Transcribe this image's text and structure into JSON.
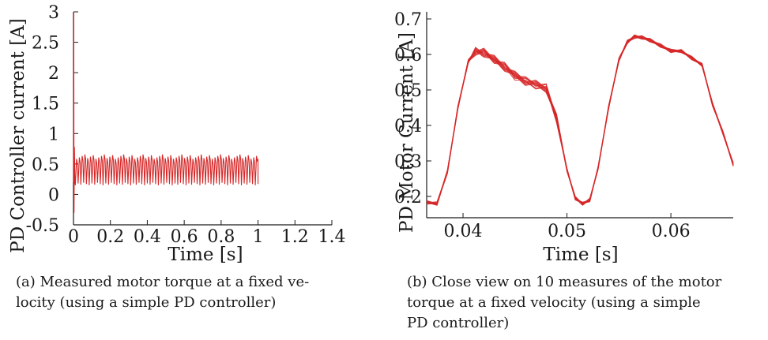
{
  "chart_data": [
    {
      "type": "line",
      "title": "",
      "xlabel": "Time [s]",
      "ylabel": "PD Controller current [A]",
      "xlim": [
        0,
        1.4
      ],
      "ylim": [
        -0.5,
        3
      ],
      "xticks": [
        0,
        0.2,
        0.4,
        0.6,
        0.8,
        1,
        1.2,
        1.4
      ],
      "xtick_labels": [
        "0",
        "0.2",
        "0.4",
        "0.6",
        "0.8",
        "1",
        "1.2",
        "1.4"
      ],
      "yticks": [
        -0.5,
        0,
        0.5,
        1,
        1.5,
        2,
        2.5,
        3
      ],
      "ytick_labels": [
        "-0.5",
        "0",
        "0.5",
        "1",
        "1.5",
        "2",
        "2.5",
        "3"
      ],
      "grid": false,
      "series": [
        {
          "color": "#d62728",
          "description_values": {
            "initial_spike_t": 0,
            "initial_spike_peak": 3.0,
            "initial_dip": -0.3,
            "oscillation_period_s": 0.015,
            "oscillation_min": 0.17,
            "oscillation_max": 0.62,
            "end_time": 1.0
          }
        }
      ],
      "caption": "(a) Measured motor torque at a fixed velocity (using a simple PD controller)"
    },
    {
      "type": "line",
      "title": "",
      "xlabel": "Time [s]",
      "ylabel": "PD Motor Current [A]",
      "xlim": [
        0.0365,
        0.066
      ],
      "ylim": [
        0.14,
        0.72
      ],
      "xticks": [
        0.04,
        0.05,
        0.06
      ],
      "xtick_labels": [
        "0.04",
        "0.05",
        "0.06"
      ],
      "yticks": [
        0.2,
        0.3,
        0.4,
        0.5,
        0.6,
        0.7
      ],
      "ytick_labels": [
        "0.2",
        "0.3",
        "0.4",
        "0.5",
        "0.6",
        "0.7"
      ],
      "grid": false,
      "series_count": 10,
      "color": "#d62728",
      "x": [
        0.0365,
        0.0375,
        0.0385,
        0.0395,
        0.0405,
        0.0412,
        0.042,
        0.043,
        0.044,
        0.045,
        0.046,
        0.047,
        0.048,
        0.049,
        0.05,
        0.0508,
        0.0515,
        0.0522,
        0.053,
        0.054,
        0.055,
        0.0558,
        0.0565,
        0.0572,
        0.058,
        0.059,
        0.06,
        0.061,
        0.062,
        0.063,
        0.064,
        0.065,
        0.066
      ],
      "y": [
        0.183,
        0.18,
        0.27,
        0.45,
        0.58,
        0.61,
        0.605,
        0.585,
        0.565,
        0.54,
        0.525,
        0.515,
        0.505,
        0.42,
        0.275,
        0.195,
        0.18,
        0.19,
        0.28,
        0.45,
        0.585,
        0.635,
        0.65,
        0.648,
        0.64,
        0.625,
        0.61,
        0.61,
        0.59,
        0.57,
        0.46,
        0.38,
        0.29
      ],
      "caption": "(b) Close view on 10 measures of the motor torque at a fixed velocity (using a simple PD controller)"
    }
  ],
  "captions": {
    "a_line1": "(a) Measured motor torque at a fixed ve-",
    "a_line2": "locity (using a simple PD controller)",
    "b_line1": "(b) Close view on 10 measures of the motor",
    "b_line2": "torque at a fixed velocity (using a simple",
    "b_line3": "PD controller)"
  }
}
